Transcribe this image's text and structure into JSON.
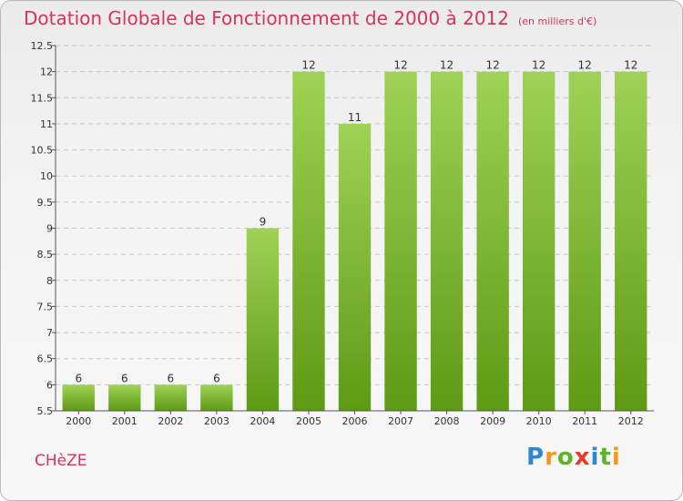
{
  "title": "Dotation Globale de Fonctionnement de 2000 à 2012",
  "title_unit": "(en milliers d'€)",
  "commune": "CHèZE",
  "brand": {
    "letters": [
      "P",
      "r",
      "o",
      "x",
      "i",
      "t",
      "i"
    ],
    "colors": [
      "#2f86d1",
      "#f39a1e",
      "#5fb32a",
      "#e23c2d",
      "#2f86d1",
      "#5fb32a",
      "#f39a1e"
    ]
  },
  "colors": {
    "title": "#d6335a",
    "bar_top": "#9fd256",
    "bar_bottom": "#5e9a14",
    "grid": "#c8c8c8"
  },
  "chart_data": {
    "type": "bar",
    "categories": [
      "2000",
      "2001",
      "2002",
      "2003",
      "2004",
      "2005",
      "2006",
      "2007",
      "2008",
      "2009",
      "2010",
      "2011",
      "2012"
    ],
    "values": [
      6,
      6,
      6,
      6,
      9,
      12,
      11,
      12,
      12,
      12,
      12,
      12,
      12
    ],
    "data_labels": [
      "6",
      "6",
      "6",
      "6",
      "9",
      "12",
      "11",
      "12",
      "12",
      "12",
      "12",
      "12",
      "12"
    ],
    "ylim": [
      5.5,
      12.5
    ],
    "yticks": [
      5.5,
      6,
      6.5,
      7,
      7.5,
      8,
      8.5,
      9,
      9.5,
      10,
      10.5,
      11,
      11.5,
      12,
      12.5
    ],
    "ytick_labels": [
      "5.5",
      "6",
      "6.5",
      "7",
      "7.5",
      "8",
      "8.5",
      "9",
      "9.5",
      "10",
      "10.5",
      "11",
      "11.5",
      "12",
      "12.5"
    ],
    "grid": true,
    "xlabel": "",
    "ylabel": ""
  }
}
